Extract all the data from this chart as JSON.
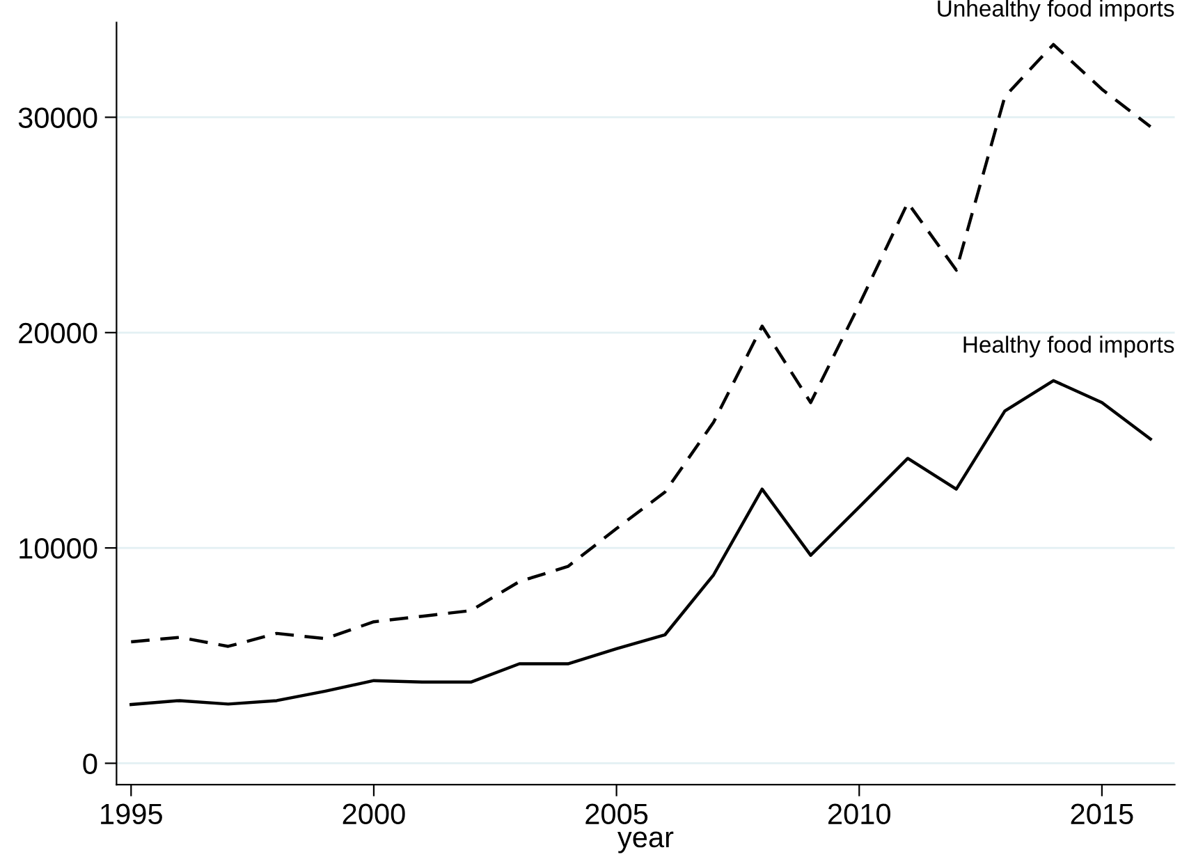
{
  "chart_data": {
    "type": "line",
    "xlabel": "year",
    "x": [
      1995,
      1996,
      1997,
      1998,
      1999,
      2000,
      2001,
      2002,
      2003,
      2004,
      2005,
      2006,
      2007,
      2008,
      2009,
      2010,
      2011,
      2012,
      2013,
      2014,
      2015,
      2016
    ],
    "series": [
      {
        "name": "Unhealthy food imports",
        "color": "#000000",
        "line_style": "dashed",
        "values": [
          5640,
          5850,
          5430,
          6030,
          5790,
          6570,
          6830,
          7090,
          8440,
          9140,
          10900,
          12600,
          15840,
          20300,
          16750,
          21300,
          26030,
          22900,
          30960,
          33380,
          31300,
          29560
        ]
      },
      {
        "name": "Healthy food imports",
        "color": "#000000",
        "line_style": "solid",
        "values": [
          2730,
          2910,
          2750,
          2910,
          3350,
          3840,
          3770,
          3770,
          4620,
          4620,
          5320,
          5970,
          8750,
          12730,
          9660,
          11900,
          14160,
          12730,
          16360,
          17770,
          16750,
          15060
        ]
      }
    ],
    "xlim": [
      1994.7,
      2016.5
    ],
    "xticks": [
      1995,
      2000,
      2005,
      2010,
      2015
    ],
    "ylim": [
      -990,
      34400
    ],
    "yticks": [
      0,
      10000,
      20000,
      30000
    ],
    "grid": "y",
    "legend": false,
    "marker": "none"
  }
}
